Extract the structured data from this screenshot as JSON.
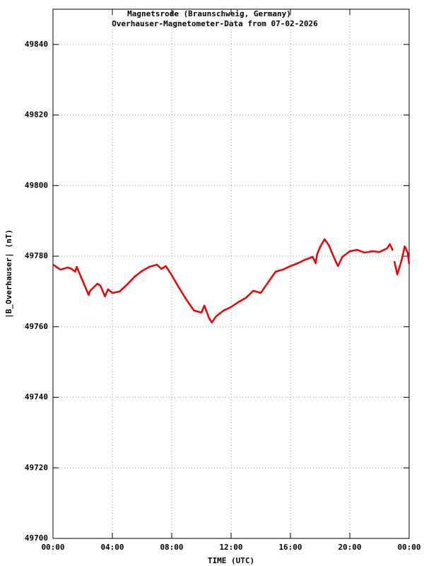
{
  "chart_data": {
    "type": "line",
    "title": "Magnetsrode (Braunschweig, Germany)",
    "subtitle": "Overhauser-Magnetometer-Data from 07-02-2026",
    "xlabel": "TIME (UTC)",
    "ylabel": "|B_Overhauser| (nT)",
    "x": [
      0,
      0.5,
      1.0,
      1.25,
      1.5,
      1.6,
      2.0,
      2.4,
      2.5,
      3.0,
      3.2,
      3.5,
      3.7,
      4.0,
      4.5,
      5.0,
      5.5,
      6.0,
      6.5,
      7.0,
      7.3,
      7.6,
      8.0,
      8.5,
      9.0,
      9.5,
      10.0,
      10.2,
      10.5,
      10.7,
      11.0,
      11.5,
      12.0,
      12.5,
      13.0,
      13.5,
      14.0,
      14.5,
      15.0,
      15.5,
      16.0,
      16.5,
      17.0,
      17.5,
      17.7,
      17.8,
      18.0,
      18.3,
      18.6,
      19.0,
      19.2,
      19.5,
      20.0,
      20.5,
      21.0,
      21.5,
      22.0,
      22.5,
      22.7,
      22.9,
      22.95,
      23.0,
      23.2,
      23.5,
      23.7,
      23.9,
      24.0
    ],
    "series": [
      {
        "name": "|B_Overhauser|",
        "color": "#ee0000",
        "values": [
          49777.6,
          49776.2,
          49776.8,
          49776.4,
          49775.6,
          49777.0,
          49773.0,
          49769.0,
          49770.2,
          49772.2,
          49771.6,
          49768.6,
          49770.6,
          49769.6,
          49770.0,
          49772.0,
          49774.2,
          49775.8,
          49777.0,
          49777.6,
          49776.4,
          49777.2,
          49774.6,
          49771.0,
          49767.6,
          49764.6,
          49764.0,
          49766.0,
          49762.6,
          49761.2,
          49763.0,
          49764.6,
          49765.6,
          49767.0,
          49768.2,
          49770.2,
          49769.6,
          49772.6,
          49775.6,
          49776.2,
          49777.2,
          49778.0,
          49779.0,
          49779.8,
          49778.0,
          49780.6,
          49782.6,
          49784.8,
          49783.0,
          49779.0,
          49777.2,
          49779.8,
          49781.4,
          49781.8,
          49781.0,
          49781.4,
          49781.2,
          49782.2,
          49783.4,
          49781.6,
          null,
          49778.6,
          49774.8,
          49779.0,
          49782.8,
          49781.0,
          49777.8
        ]
      }
    ],
    "xlim": [
      0,
      24
    ],
    "xticks": [
      {
        "value": 0,
        "label": "00:00"
      },
      {
        "value": 4,
        "label": "04:00"
      },
      {
        "value": 8,
        "label": "08:00"
      },
      {
        "value": 12,
        "label": "12:00"
      },
      {
        "value": 16,
        "label": "16:00"
      },
      {
        "value": 20,
        "label": "20:00"
      },
      {
        "value": 24,
        "label": "00:00"
      }
    ],
    "ylim": [
      49700,
      49850
    ],
    "yticks": [
      49700,
      49720,
      49740,
      49760,
      49780,
      49800,
      49820,
      49840
    ],
    "grid": true
  }
}
